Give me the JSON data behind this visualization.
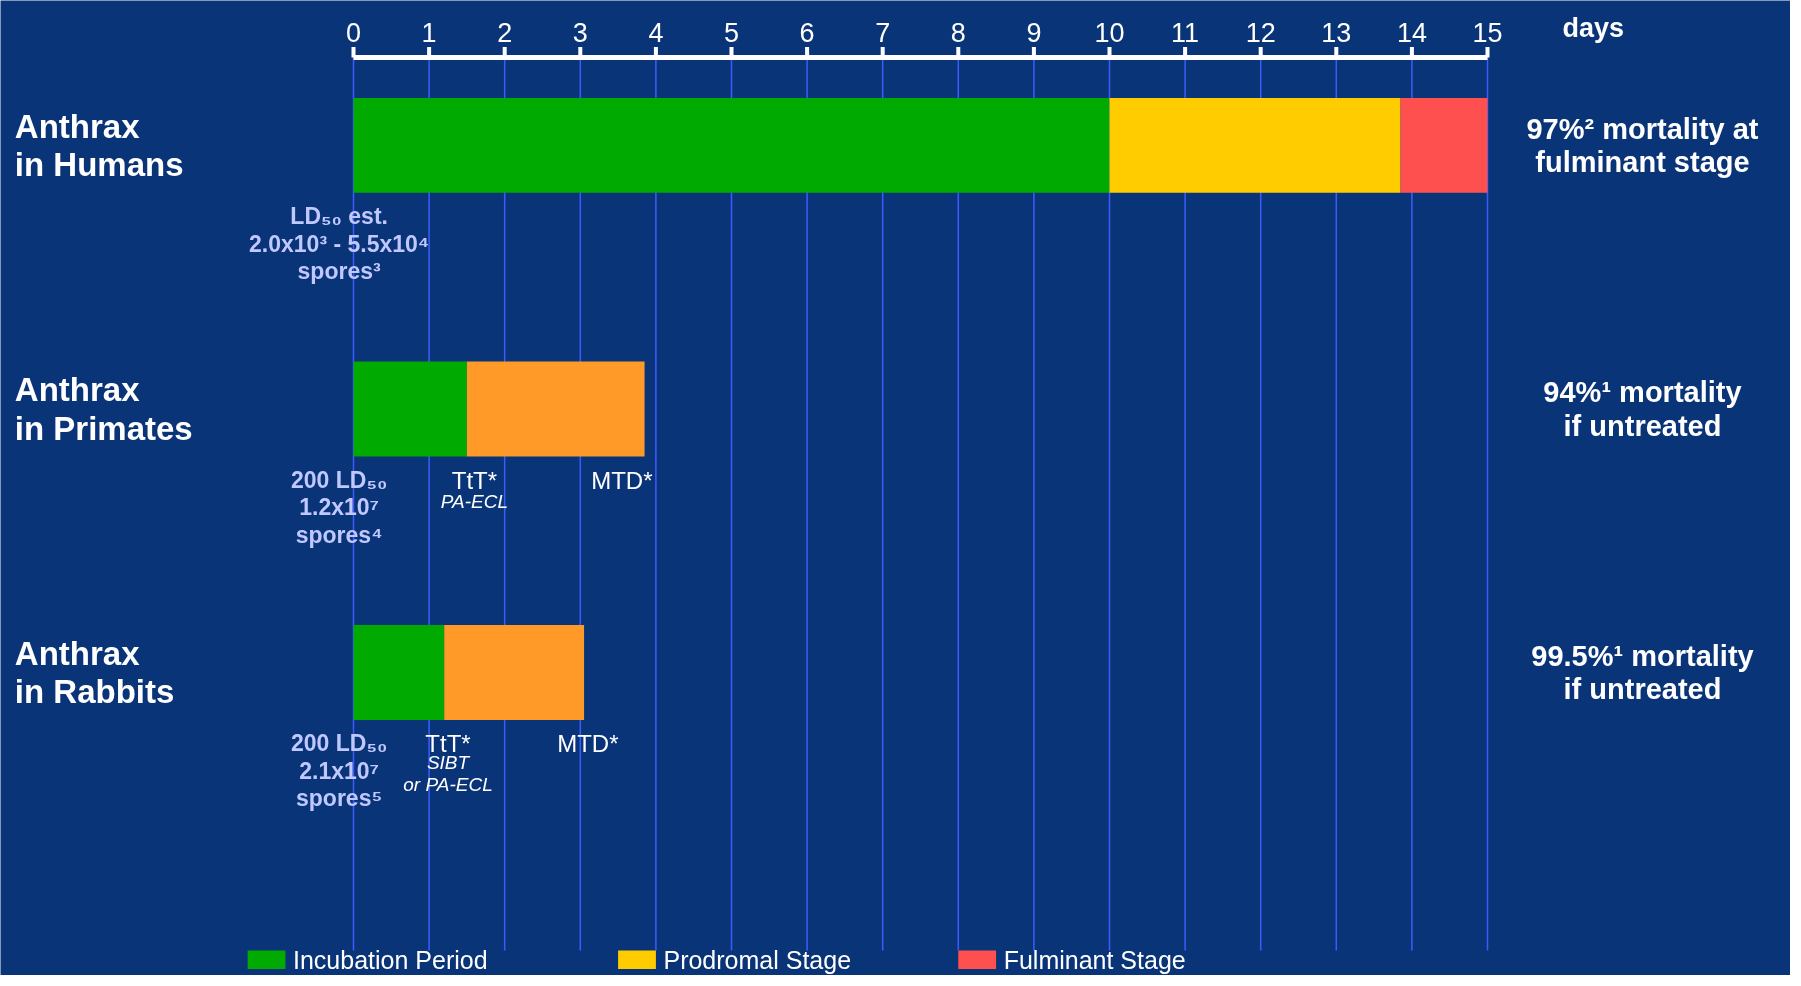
{
  "chart_data": {
    "type": "bar",
    "orientation": "horizontal",
    "stacked": true,
    "categories": [
      "Anthrax in Humans",
      "Anthrax in Primates",
      "Anthrax in Rabbits"
    ],
    "series": [
      {
        "name": "Incubation Period",
        "color": "#00aa00",
        "values": [
          10,
          1.5,
          1.2
        ]
      },
      {
        "name": "Prodromal Stage",
        "color": "#ffcc00",
        "colors": [
          "#ffcc00",
          "#ff9a28",
          "#ff9a28"
        ],
        "values": [
          3.85,
          2.35,
          1.85
        ]
      },
      {
        "name": "Fulminant Stage",
        "color": "#ff5050",
        "values": [
          1.15,
          null,
          null
        ]
      }
    ],
    "xlim": [
      0,
      15
    ],
    "xticks": [
      0,
      1,
      2,
      3,
      4,
      5,
      6,
      7,
      8,
      9,
      10,
      11,
      12,
      13,
      14,
      15
    ],
    "xlabel": "days",
    "grid": "x",
    "legend": "bottom",
    "annotations": [
      "97%² mortality at\nfulminant stage",
      "94%¹ mortality\nif untreated",
      "99.5%¹ mortality\nif untreated",
      "LD₅₀ est.\n2.0x10³ - 5.5x10⁴\nspores³",
      "200 LD₅₀\n1.2x10⁷\nspores⁴",
      "200 LD₅₀\n2.1x10⁷\nspores⁵",
      "TtT*",
      "PA-ECL",
      "MTD*",
      "TtT*",
      "SIBT\nor PA-ECL",
      "MTD*"
    ]
  }
}
